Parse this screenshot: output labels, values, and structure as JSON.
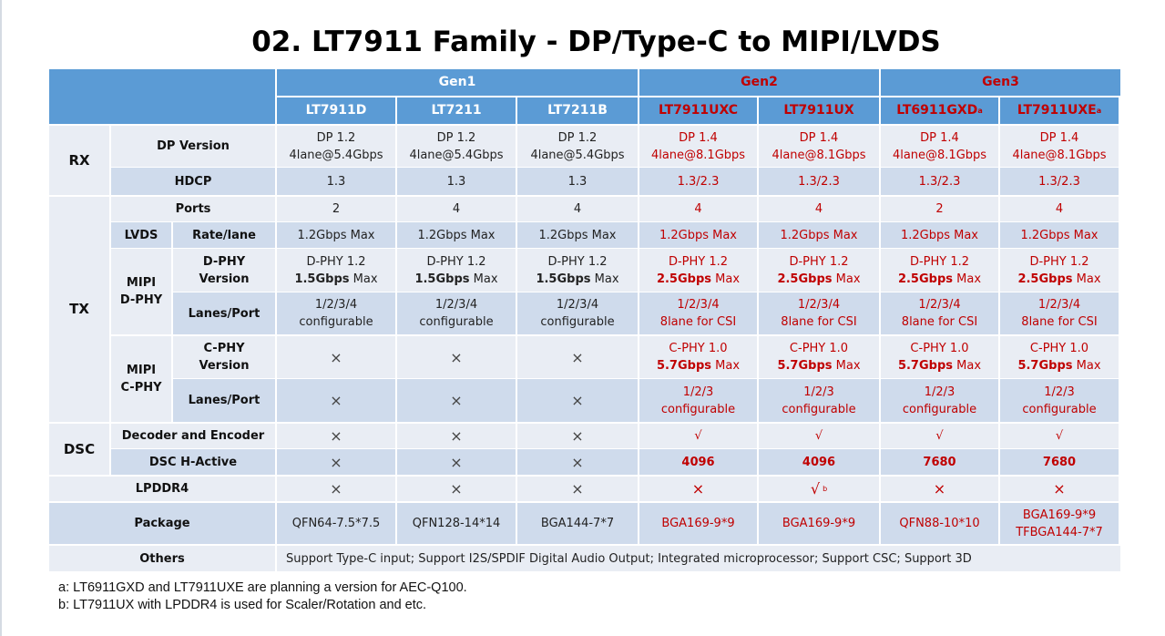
{
  "title": "02. LT7911 Family - DP/Type-C to MIPI/LVDS",
  "generations": [
    {
      "label": "Gen1",
      "color": "#ffffff"
    },
    {
      "label": "Gen2",
      "color": "#c00000"
    },
    {
      "label": "Gen3",
      "color": "#c00000"
    }
  ],
  "models": [
    {
      "name": "LT7911D",
      "sup": "",
      "generation": "Gen1"
    },
    {
      "name": "LT7211",
      "sup": "",
      "generation": "Gen1"
    },
    {
      "name": "LT7211B",
      "sup": "",
      "generation": "Gen1"
    },
    {
      "name": "LT7911UXC",
      "sup": "",
      "generation": "Gen2"
    },
    {
      "name": "LT7911UX",
      "sup": "",
      "generation": "Gen2"
    },
    {
      "name": "LT6911GXD",
      "sup": "a",
      "generation": "Gen3"
    },
    {
      "name": "LT7911UXE",
      "sup": "a",
      "generation": "Gen3"
    }
  ],
  "groups": {
    "rx": "RX",
    "tx": "TX",
    "dsc": "DSC",
    "lvds": "LVDS",
    "mipi_dphy": [
      "MIPI",
      "D-PHY"
    ],
    "mipi_cphy": [
      "MIPI",
      "C-PHY"
    ]
  },
  "params": {
    "dp_version": "DP Version",
    "hdcp": "HDCP",
    "ports": "Ports",
    "rate_lane": "Rate/lane",
    "dphy_version": [
      "D-PHY",
      "Version"
    ],
    "dphy_lanes": "Lanes/Port",
    "cphy_version": [
      "C-PHY",
      "Version"
    ],
    "cphy_lanes": "Lanes/Port",
    "decoder_encoder": "Decoder and Encoder",
    "dsc_hactive": "DSC H-Active",
    "lpddr4": "LPDDR4",
    "package": "Package",
    "others": "Others"
  },
  "values": {
    "dp_version": [
      [
        "DP 1.2",
        "4lane@5.4Gbps"
      ],
      [
        "DP 1.2",
        "4lane@5.4Gbps"
      ],
      [
        "DP 1.2",
        "4lane@5.4Gbps"
      ],
      [
        "DP 1.4",
        "4lane@8.1Gbps"
      ],
      [
        "DP 1.4",
        "4lane@8.1Gbps"
      ],
      [
        "DP 1.4",
        "4lane@8.1Gbps"
      ],
      [
        "DP 1.4",
        "4lane@8.1Gbps"
      ]
    ],
    "hdcp": [
      "1.3",
      "1.3",
      "1.3",
      "1.3/2.3",
      "1.3/2.3",
      "1.3/2.3",
      "1.3/2.3"
    ],
    "ports": [
      "2",
      "4",
      "4",
      "4",
      "4",
      "2",
      "4"
    ],
    "rate_lane": [
      "1.2Gbps Max",
      "1.2Gbps Max",
      "1.2Gbps Max",
      "1.2Gbps Max",
      "1.2Gbps Max",
      "1.2Gbps Max",
      "1.2Gbps Max"
    ],
    "dphy_version": [
      [
        "D-PHY 1.2",
        "1.5Gbps",
        " Max"
      ],
      [
        "D-PHY 1.2",
        "1.5Gbps",
        " Max"
      ],
      [
        "D-PHY 1.2",
        "1.5Gbps",
        " Max"
      ],
      [
        "D-PHY 1.2",
        "2.5Gbps",
        " Max"
      ],
      [
        "D-PHY 1.2",
        "2.5Gbps",
        " Max"
      ],
      [
        "D-PHY 1.2",
        "2.5Gbps",
        " Max"
      ],
      [
        "D-PHY 1.2",
        "2.5Gbps",
        " Max"
      ]
    ],
    "dphy_lanes": [
      [
        "1/2/3/4",
        "configurable"
      ],
      [
        "1/2/3/4",
        "configurable"
      ],
      [
        "1/2/3/4",
        "configurable"
      ],
      [
        "1/2/3/4",
        "8lane for CSI"
      ],
      [
        "1/2/3/4",
        "8lane for CSI"
      ],
      [
        "1/2/3/4",
        "8lane for CSI"
      ],
      [
        "1/2/3/4",
        "8lane for CSI"
      ]
    ],
    "cphy_version": [
      [
        "×"
      ],
      [
        "×"
      ],
      [
        "×"
      ],
      [
        "C-PHY 1.0",
        "5.7Gbps",
        " Max"
      ],
      [
        "C-PHY 1.0",
        "5.7Gbps",
        " Max"
      ],
      [
        "C-PHY 1.0",
        "5.7Gbps",
        " Max"
      ],
      [
        "C-PHY 1.0",
        "5.7Gbps",
        " Max"
      ]
    ],
    "cphy_lanes": [
      [
        "×"
      ],
      [
        "×"
      ],
      [
        "×"
      ],
      [
        "1/2/3",
        "configurable"
      ],
      [
        "1/2/3",
        "configurable"
      ],
      [
        "1/2/3",
        "configurable"
      ],
      [
        "1/2/3",
        "configurable"
      ]
    ],
    "decoder_encoder": [
      "×",
      "×",
      "×",
      "√",
      "√",
      "√",
      "√"
    ],
    "dsc_hactive": [
      "×",
      "×",
      "×",
      "4096",
      "4096",
      "7680",
      "7680"
    ],
    "lpddr4": [
      {
        "v": "×",
        "sup": ""
      },
      {
        "v": "×",
        "sup": ""
      },
      {
        "v": "×",
        "sup": ""
      },
      {
        "v": "×",
        "sup": ""
      },
      {
        "v": "√",
        "sup": "b"
      },
      {
        "v": "×",
        "sup": ""
      },
      {
        "v": "×",
        "sup": ""
      }
    ],
    "package": [
      [
        "QFN64-7.5*7.5"
      ],
      [
        "QFN128-14*14"
      ],
      [
        "BGA144-7*7"
      ],
      [
        "BGA169-9*9"
      ],
      [
        "BGA169-9*9"
      ],
      [
        "QFN88-10*10"
      ],
      [
        "BGA169-9*9",
        "TFBGA144-7*7"
      ]
    ],
    "others": "Support Type-C input; Support I2S/SPDIF Digital Audio Output; Integrated microprocessor; Support CSC; Support 3D"
  },
  "footnotes": [
    "a: LT6911GXD and LT7911UXE are planning a version for AEC-Q100.",
    "b: LT7911UX with LPDDR4 is used for Scaler/Rotation and etc."
  ],
  "colors": {
    "header_blue": "#5b9bd5",
    "row_light": "#e9edf4",
    "row_dark": "#cfdbec",
    "accent_red": "#c00000"
  }
}
